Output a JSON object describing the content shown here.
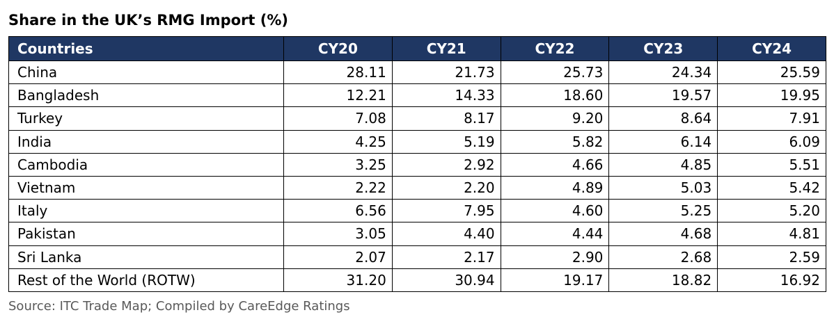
{
  "colors": {
    "header_background": "#1f3763",
    "header_text": "#ffffff",
    "border": "#000000",
    "source_text": "#595959"
  },
  "chart_data": {
    "type": "table",
    "title": "Share in the UK’s RMG Import (%)",
    "columns": [
      "Countries",
      "CY20",
      "CY21",
      "CY22",
      "CY23",
      "CY24"
    ],
    "rows": [
      {
        "country": "China",
        "values": [
          "28.11",
          "21.73",
          "25.73",
          "24.34",
          "25.59"
        ]
      },
      {
        "country": "Bangladesh",
        "values": [
          "12.21",
          "14.33",
          "18.60",
          "19.57",
          "19.95"
        ]
      },
      {
        "country": "Turkey",
        "values": [
          "7.08",
          "8.17",
          "9.20",
          "8.64",
          "7.91"
        ]
      },
      {
        "country": "India",
        "values": [
          "4.25",
          "5.19",
          "5.82",
          "6.14",
          "6.09"
        ]
      },
      {
        "country": "Cambodia",
        "values": [
          "3.25",
          "2.92",
          "4.66",
          "4.85",
          "5.51"
        ]
      },
      {
        "country": "Vietnam",
        "values": [
          "2.22",
          "2.20",
          "4.89",
          "5.03",
          "5.42"
        ]
      },
      {
        "country": "Italy",
        "values": [
          "6.56",
          "7.95",
          "4.60",
          "5.25",
          "5.20"
        ]
      },
      {
        "country": "Pakistan",
        "values": [
          "3.05",
          "4.40",
          "4.44",
          "4.68",
          "4.81"
        ]
      },
      {
        "country": "Sri Lanka",
        "values": [
          "2.07",
          "2.17",
          "2.90",
          "2.68",
          "2.59"
        ]
      },
      {
        "country": "Rest of the World (ROTW)",
        "values": [
          "31.20",
          "30.94",
          "19.17",
          "18.82",
          "16.92"
        ]
      }
    ],
    "source": "Source: ITC Trade Map; Compiled by CareEdge Ratings"
  }
}
